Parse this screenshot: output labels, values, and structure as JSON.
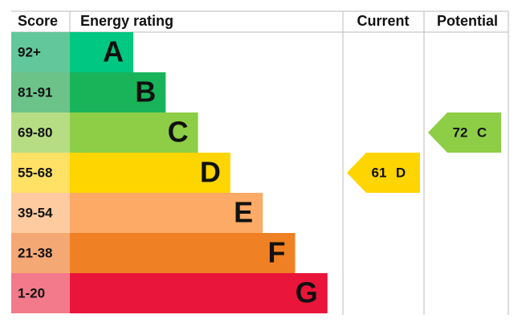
{
  "header": {
    "score": "Score",
    "rating": "Energy rating",
    "current": "Current",
    "potential": "Potential"
  },
  "bands": [
    {
      "score": "92+",
      "letter": "A",
      "score_color": "#62c89c",
      "color": "#00c781"
    },
    {
      "score": "81-91",
      "letter": "B",
      "score_color": "#6cc38a",
      "color": "#19b459"
    },
    {
      "score": "69-80",
      "letter": "C",
      "score_color": "#b6dd84",
      "color": "#8dce46"
    },
    {
      "score": "55-68",
      "letter": "D",
      "score_color": "#ffe166",
      "color": "#ffd500"
    },
    {
      "score": "39-54",
      "letter": "E",
      "score_color": "#fdcb9f",
      "color": "#fcaa65"
    },
    {
      "score": "21-38",
      "letter": "F",
      "score_color": "#f4a874",
      "color": "#ef8023"
    },
    {
      "score": "1-20",
      "letter": "G",
      "score_color": "#f27a8b",
      "color": "#e9153b"
    }
  ],
  "current": {
    "value": 61,
    "letter": "D"
  },
  "potential": {
    "value": 72,
    "letter": "C"
  }
}
